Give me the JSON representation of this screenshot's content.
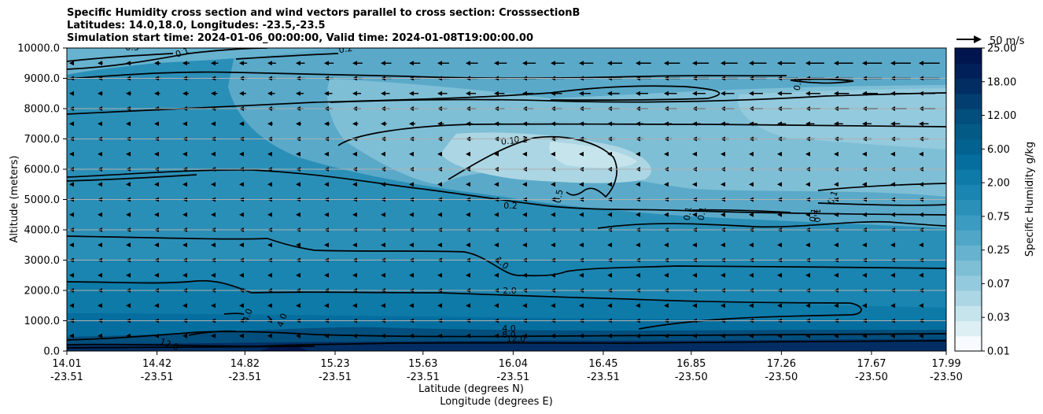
{
  "title_lines": [
    "Specific Humidity cross section and wind vectors parallel to cross section: CrosssectionB",
    "Latitudes: 14.0,18.0, Longitudes: -23.5,-23.5",
    "Simulation start time: 2024-01-06_00:00:00, Valid time: 2024-01-08T19:00:00.00"
  ],
  "chart_data": {
    "type": "heatmap",
    "ylabel": "Altitude (meters)",
    "xlabel_lat": "Latitude (degrees N)",
    "xlabel_lon": "Longitude (degrees E)",
    "ylim": [
      0,
      10000
    ],
    "y_ticks": [
      "0.0",
      "1000.0",
      "2000.0",
      "3000.0",
      "4000.0",
      "5000.0",
      "6000.0",
      "7000.0",
      "8000.0",
      "9000.0",
      "10000.0"
    ],
    "x_ticks": [
      {
        "lat": "14.01",
        "lon": "-23.51",
        "frac": 0.0
      },
      {
        "lat": "14.42",
        "lon": "-23.51",
        "frac": 0.1025
      },
      {
        "lat": "14.82",
        "lon": "-23.51",
        "frac": 0.2025
      },
      {
        "lat": "15.23",
        "lon": "-23.51",
        "frac": 0.305
      },
      {
        "lat": "15.63",
        "lon": "-23.51",
        "frac": 0.405
      },
      {
        "lat": "16.04",
        "lon": "-23.51",
        "frac": 0.5075
      },
      {
        "lat": "16.45",
        "lon": "-23.51",
        "frac": 0.61
      },
      {
        "lat": "16.85",
        "lon": "-23.50",
        "frac": 0.71
      },
      {
        "lat": "17.26",
        "lon": "-23.50",
        "frac": 0.8125
      },
      {
        "lat": "17.67",
        "lon": "-23.50",
        "frac": 0.915
      },
      {
        "lat": "17.99",
        "lon": "-23.50",
        "frac": 1.0
      }
    ],
    "colorbar": {
      "label": "Specific Humidity g/kg",
      "tick_labels": [
        "0.01",
        "0.03",
        "0.07",
        "0.25",
        "0.75",
        "2.00",
        "6.00",
        "12.00",
        "18.00",
        "25.00"
      ],
      "colors": [
        "#f7fbff",
        "#ddeff3",
        "#c6e4ec",
        "#acd6e3",
        "#94cadd",
        "#7ebfd6",
        "#66b2cf",
        "#4fa6c7",
        "#3b9bc0",
        "#2a90b8",
        "#1a85b0",
        "#0e7aa8",
        "#056e9f",
        "#03628f",
        "#025a85",
        "#024e7c",
        "#023f70",
        "#012d62",
        "#012059",
        "#00154d"
      ]
    },
    "reference_vector": "50 m/s",
    "contour_labels": [
      "0.3",
      "0.1",
      "0.2",
      "0.2",
      "0.1",
      "0.1",
      "0.1",
      "0.5",
      "0.1",
      "0.1",
      "0.1",
      "0.2",
      "1.0",
      "1.0",
      "2.0",
      "4.0",
      "4.0",
      "4.0",
      "8.0",
      "12.0",
      "12.0"
    ],
    "grid": true
  }
}
